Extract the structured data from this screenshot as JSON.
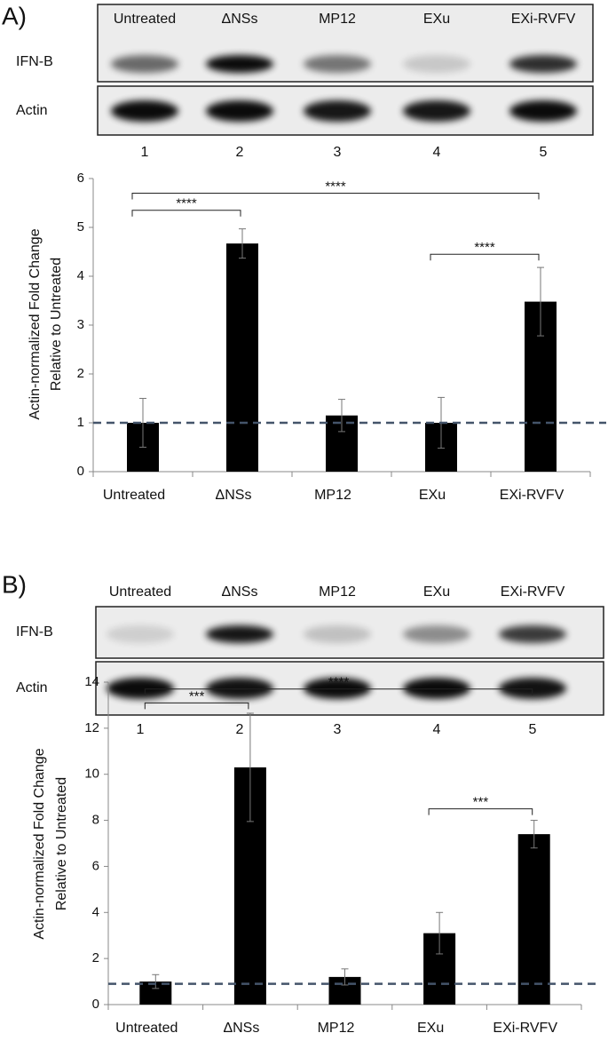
{
  "chart_data": [
    {
      "type": "bar",
      "panel_label": "A)",
      "blot": {
        "lanes": [
          "Untreated",
          "ΔNSs",
          "MP12",
          "EXu",
          "EXi-RVFV"
        ],
        "rows": [
          "IFN-B",
          "Actin"
        ],
        "lane_numbers": [
          "1",
          "2",
          "3",
          "4",
          "5"
        ]
      },
      "ylabel": [
        "Actin-normalized Fold Change",
        "Relative to Untreated"
      ],
      "categories": [
        "Untreated",
        "ΔNSs",
        "MP12",
        "EXu",
        "EXi-RVFV"
      ],
      "values": [
        1.0,
        4.67,
        1.15,
        1.0,
        3.48
      ],
      "errors": [
        0.5,
        0.3,
        0.33,
        0.52,
        0.7
      ],
      "color": "#000000",
      "ylim": [
        0,
        6
      ],
      "yticks": [
        0,
        1,
        2,
        3,
        4,
        5,
        6
      ],
      "hline": {
        "value": 1,
        "color": "#44546a",
        "style": "dashed"
      },
      "annotations": [
        {
          "text": "****",
          "from": 0,
          "to": 1,
          "y": 5.35
        },
        {
          "text": "****",
          "from": 0,
          "to": 4,
          "y": 5.7
        },
        {
          "text": "****",
          "from": 3,
          "to": 4,
          "y": 4.45
        }
      ]
    },
    {
      "type": "bar",
      "panel_label": "B)",
      "blot": {
        "lanes": [
          "Untreated",
          "ΔNSs",
          "MP12",
          "EXu",
          "EXi-RVFV"
        ],
        "rows": [
          "IFN-B",
          "Actin"
        ],
        "lane_numbers": [
          "1",
          "2",
          "3",
          "4",
          "5"
        ]
      },
      "ylabel": [
        "Actin-normalized Fold Change",
        "Relative to Untreated"
      ],
      "categories": [
        "Untreated",
        "ΔNSs",
        "MP12",
        "EXu",
        "EXi-RVFV"
      ],
      "values": [
        1.0,
        10.3,
        1.2,
        3.1,
        7.4
      ],
      "errors": [
        0.3,
        2.35,
        0.35,
        0.9,
        0.6
      ],
      "color": "#000000",
      "ylim": [
        0,
        14
      ],
      "yticks": [
        0,
        2,
        4,
        6,
        8,
        10,
        12,
        14
      ],
      "hline": {
        "value": 0.9,
        "color": "#44546a",
        "style": "dashed"
      },
      "annotations": [
        {
          "text": "***",
          "from": 0,
          "to": 1,
          "y": 13.1
        },
        {
          "text": "****",
          "from": 0,
          "to": 4,
          "y": 13.7
        },
        {
          "text": "***",
          "from": 3,
          "to": 4,
          "y": 8.5
        }
      ]
    }
  ]
}
